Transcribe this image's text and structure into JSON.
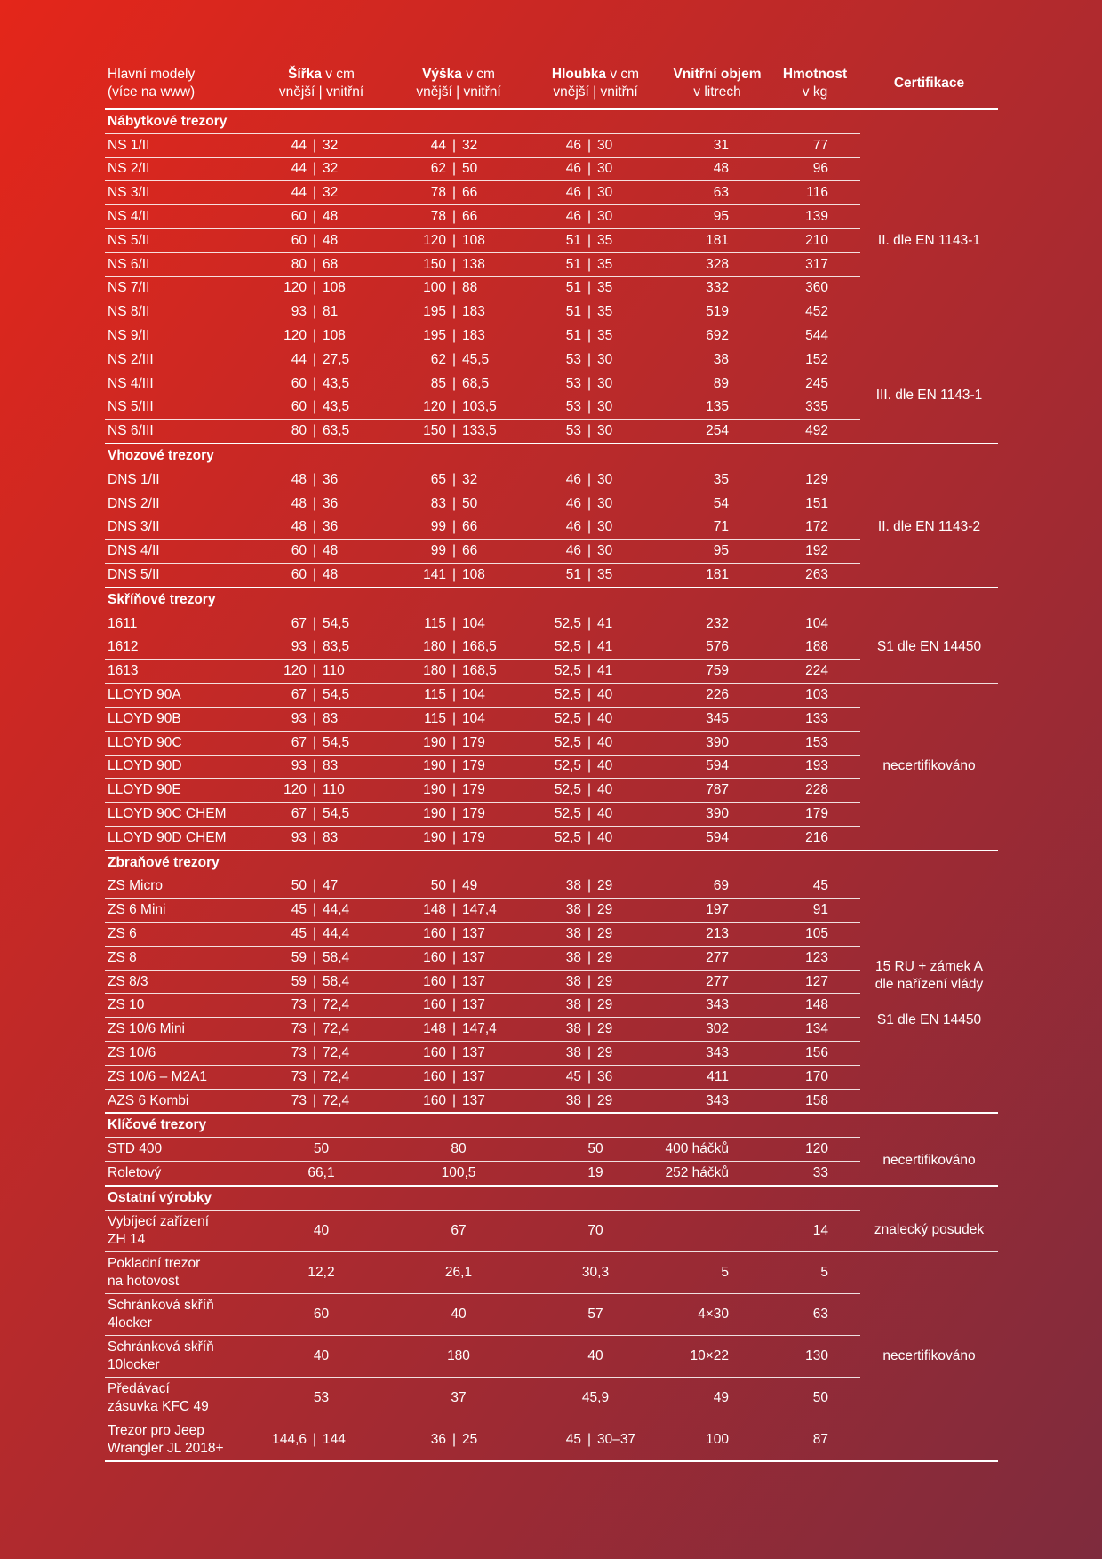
{
  "header": {
    "models": "Hlavní modely\n(více na www)",
    "width": {
      "bold": "Šířka",
      "rest": " v cm",
      "sub": "vnější | vnitřní"
    },
    "height": {
      "bold": "Výška",
      "rest": " v cm",
      "sub": "vnější | vnitřní"
    },
    "depth": {
      "bold": "Hloubka",
      "rest": " v cm",
      "sub": "vnější | vnitřní"
    },
    "volume": {
      "bold": "Vnitřní objem",
      "rest": "",
      "sub": "v litrech"
    },
    "weight": {
      "bold": "Hmotnost",
      "rest": "",
      "sub": "v kg"
    },
    "cert": "Certifikace"
  },
  "sections": [
    {
      "title": "Nábytkové trezory",
      "certs": [
        {
          "text": "II. dle EN 1143-1",
          "span": 9
        },
        {
          "text": "III. dle EN 1143-1",
          "span": 4
        }
      ],
      "rows": [
        [
          "NS 1/II",
          "44 | 32",
          "44 | 32",
          "46 | 30",
          "31",
          "77"
        ],
        [
          "NS 2/II",
          "44 | 32",
          "62 | 50",
          "46 | 30",
          "48",
          "96"
        ],
        [
          "NS 3/II",
          "44 | 32",
          "78 | 66",
          "46 | 30",
          "63",
          "116"
        ],
        [
          "NS 4/II",
          "60 | 48",
          "78 | 66",
          "46 | 30",
          "95",
          "139"
        ],
        [
          "NS 5/II",
          "60 | 48",
          "120 | 108",
          "51 | 35",
          "181",
          "210"
        ],
        [
          "NS 6/II",
          "80 | 68",
          "150 | 138",
          "51 | 35",
          "328",
          "317"
        ],
        [
          "NS 7/II",
          "120 | 108",
          "100 | 88",
          "51 | 35",
          "332",
          "360"
        ],
        [
          "NS 8/II",
          "93 | 81",
          "195 | 183",
          "51 | 35",
          "519",
          "452"
        ],
        [
          "NS 9/II",
          "120 | 108",
          "195 | 183",
          "51 | 35",
          "692",
          "544"
        ],
        [
          "NS 2/III",
          "44 | 27,5",
          "62 | 45,5",
          "53 | 30",
          "38",
          "152"
        ],
        [
          "NS 4/III",
          "60 | 43,5",
          "85 | 68,5",
          "53 | 30",
          "89",
          "245"
        ],
        [
          "NS 5/III",
          "60 | 43,5",
          "120 | 103,5",
          "53 | 30",
          "135",
          "335"
        ],
        [
          "NS 6/III",
          "80 | 63,5",
          "150 | 133,5",
          "53 | 30",
          "254",
          "492"
        ]
      ]
    },
    {
      "title": "Vhozové trezory",
      "certs": [
        {
          "text": "II. dle EN 1143-2",
          "span": 5
        }
      ],
      "rows": [
        [
          "DNS 1/II",
          "48 | 36",
          "65 | 32",
          "46 | 30",
          "35",
          "129"
        ],
        [
          "DNS 2/II",
          "48 | 36",
          "83 | 50",
          "46 | 30",
          "54",
          "151"
        ],
        [
          "DNS 3/II",
          "48 | 36",
          "99 | 66",
          "46 | 30",
          "71",
          "172"
        ],
        [
          "DNS 4/II",
          "60 | 48",
          "99 | 66",
          "46 | 30",
          "95",
          "192"
        ],
        [
          "DNS 5/II",
          "60 | 48",
          "141 | 108",
          "51 | 35",
          "181",
          "263"
        ]
      ]
    },
    {
      "title": "Skříňové trezory",
      "certs": [
        {
          "text": "S1 dle EN 14450",
          "span": 3
        },
        {
          "text": "necertifikováno",
          "span": 7
        }
      ],
      "rows": [
        [
          "1611",
          "67 | 54,5",
          "115 | 104",
          "52,5 | 41",
          "232",
          "104"
        ],
        [
          "1612",
          "93 | 83,5",
          "180 | 168,5",
          "52,5 | 41",
          "576",
          "188"
        ],
        [
          "1613",
          "120 | 110",
          "180 | 168,5",
          "52,5 | 41",
          "759",
          "224"
        ],
        [
          "LLOYD 90A",
          "67 | 54,5",
          "115 | 104",
          "52,5 | 40",
          "226",
          "103"
        ],
        [
          "LLOYD 90B",
          "93 | 83",
          "115 | 104",
          "52,5 | 40",
          "345",
          "133"
        ],
        [
          "LLOYD 90C",
          "67 | 54,5",
          "190 | 179",
          "52,5 | 40",
          "390",
          "153"
        ],
        [
          "LLOYD 90D",
          "93 | 83",
          "190 | 179",
          "52,5 | 40",
          "594",
          "193"
        ],
        [
          "LLOYD 90E",
          "120 | 110",
          "190 | 179",
          "52,5 | 40",
          "787",
          "228"
        ],
        [
          "LLOYD 90C CHEM",
          "67 | 54,5",
          "190 | 179",
          "52,5 | 40",
          "390",
          "179"
        ],
        [
          "LLOYD 90D CHEM",
          "93 | 83",
          "190 | 179",
          "52,5 | 40",
          "594",
          "216"
        ]
      ]
    },
    {
      "title": "Zbraňové trezory",
      "certs": [
        {
          "text": "15 RU + zámek A\ndle nařízení vlády\n\nS1 dle EN 14450",
          "span": 10
        }
      ],
      "rows": [
        [
          "ZS Micro",
          "50 | 47",
          "50 | 49",
          "38 | 29",
          "69",
          "45"
        ],
        [
          "ZS 6 Mini",
          "45 | 44,4",
          "148 | 147,4",
          "38 | 29",
          "197",
          "91"
        ],
        [
          "ZS 6",
          "45 | 44,4",
          "160 | 137",
          "38 | 29",
          "213",
          "105"
        ],
        [
          "ZS 8",
          "59 | 58,4",
          "160 | 137",
          "38 | 29",
          "277",
          "123"
        ],
        [
          "ZS 8/3",
          "59 | 58,4",
          "160 | 137",
          "38 | 29",
          "277",
          "127"
        ],
        [
          "ZS 10",
          "73 | 72,4",
          "160 | 137",
          "38 | 29",
          "343",
          "148"
        ],
        [
          "ZS 10/6 Mini",
          "73 | 72,4",
          "148 | 147,4",
          "38 | 29",
          "302",
          "134"
        ],
        [
          "ZS 10/6",
          "73 | 72,4",
          "160 | 137",
          "38 | 29",
          "343",
          "156"
        ],
        [
          "ZS 10/6 – M2A1",
          "73 | 72,4",
          "160 | 137",
          "45 | 36",
          "411",
          "170"
        ],
        [
          "AZS 6 Kombi",
          "73 | 72,4",
          "160 | 137",
          "38 | 29",
          "343",
          "158"
        ]
      ]
    },
    {
      "title": "Klíčové trezory",
      "certs": [
        {
          "text": "necertifikováno",
          "span": 2
        }
      ],
      "rows": [
        [
          "STD 400",
          "50",
          "80",
          "50",
          "400 háčků",
          "120"
        ],
        [
          "Roletový",
          "66,1",
          "100,5",
          "19",
          "252 háčků",
          "33"
        ]
      ]
    },
    {
      "title": "Ostatní výrobky",
      "two": true,
      "certs": [
        {
          "text": "znalecký posudek",
          "span": 1
        },
        {
          "text": "necertifikováno",
          "span": 5
        }
      ],
      "rows": [
        [
          "Vybíjecí zařízení\nZH 14",
          "40",
          "67",
          "70",
          "",
          "14"
        ],
        [
          "Pokladní trezor\nna hotovost",
          "12,2",
          "26,1",
          "30,3",
          "5",
          "5"
        ],
        [
          "Schránková skříň\n4locker",
          "60",
          "40",
          "57",
          "4×30",
          "63"
        ],
        [
          "Schránková skříň\n10locker",
          "40",
          "180",
          "40",
          "10×22",
          "130"
        ],
        [
          "Předávací\nzásuvka KFC 49",
          "53",
          "37",
          "45,9",
          "49",
          "50"
        ],
        [
          "Trezor pro Jeep\nWrangler JL 2018+",
          "144,6 | 144",
          "36 | 25",
          "45 | 30–37",
          "100",
          "87"
        ]
      ]
    }
  ]
}
